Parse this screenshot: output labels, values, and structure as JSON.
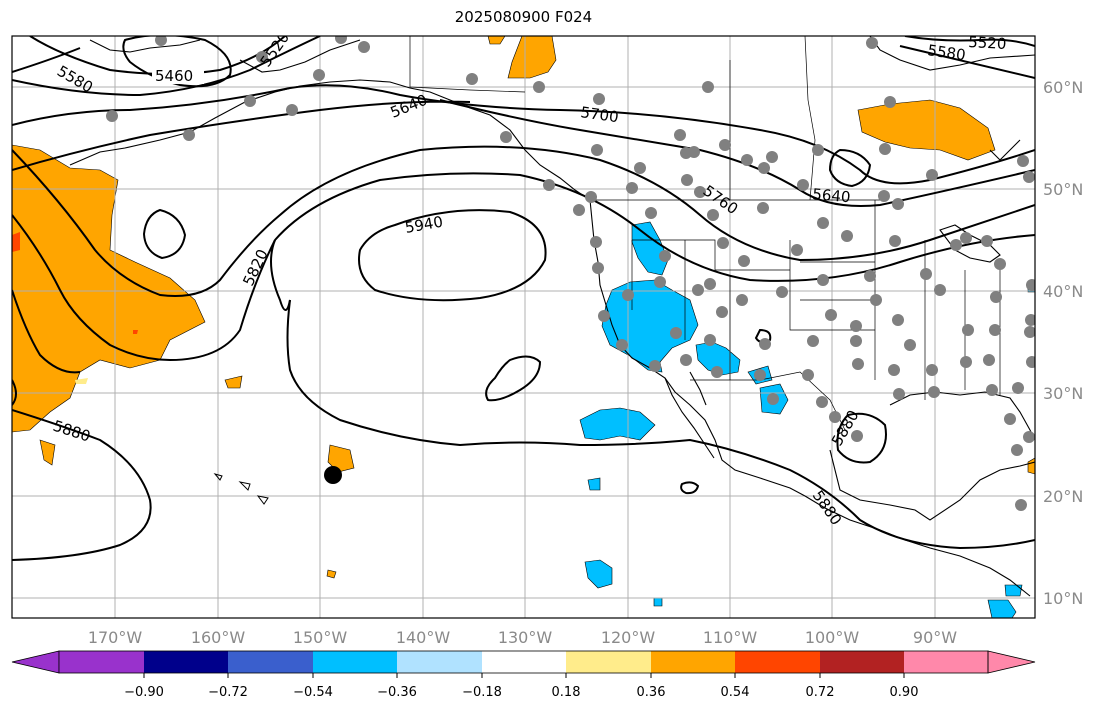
{
  "title": "2025080900 F024",
  "lat_labels": [
    "60°N",
    "50°N",
    "40°N",
    "30°N",
    "20°N",
    "10°N"
  ],
  "lon_labels": [
    "170°W",
    "160°W",
    "150°W",
    "140°W",
    "130°W",
    "120°W",
    "110°W",
    "100°W",
    "90°W"
  ],
  "contour_labels": [
    "5460",
    "5520",
    "5580",
    "5580",
    "5520",
    "5640",
    "5640",
    "5700",
    "5760",
    "5820",
    "5880",
    "5880",
    "5880",
    "5940"
  ],
  "colorbar": {
    "tick_labels": [
      "−0.90",
      "−0.72",
      "−0.54",
      "−0.36",
      "−0.18",
      "0.18",
      "0.36",
      "0.54",
      "0.72",
      "0.90"
    ],
    "colors": [
      "#9932cc",
      "#00008b",
      "#3a5fcd",
      "#00bfff",
      "#b0e2ff",
      "#ffffff",
      "#ffec8b",
      "#ffa500",
      "#ff4500",
      "#b22222",
      "#ff88aa"
    ]
  },
  "colors": {
    "positive_shade": "#ffa500",
    "negative_shade": "#00bfff",
    "station_dot": "#808080",
    "contour": "#000000",
    "grid": "#b0b0b0"
  }
}
